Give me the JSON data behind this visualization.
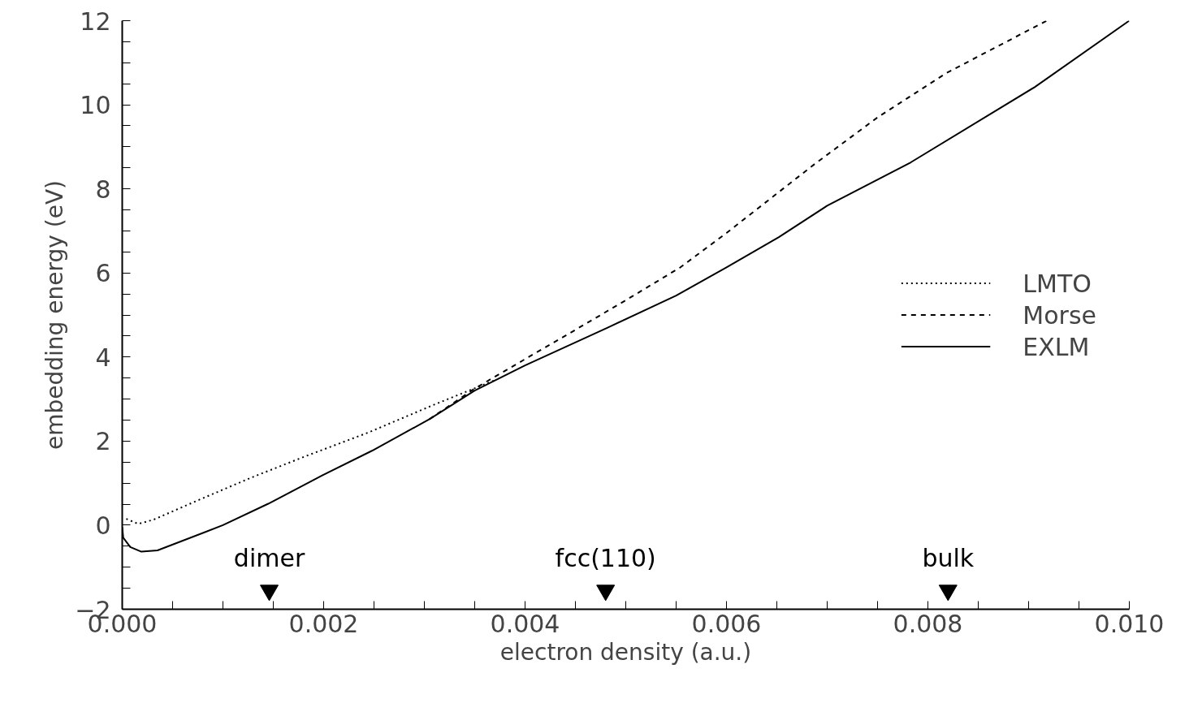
{
  "chart_data": {
    "type": "line",
    "xlabel": "electron density (a.u.)",
    "ylabel": "embedding energy (eV)",
    "xlim": [
      0,
      0.01
    ],
    "ylim": [
      -2,
      12
    ],
    "xticks": [
      {
        "value": 0,
        "label": "0.000"
      },
      {
        "value": 0.0005,
        "label": null
      },
      {
        "value": 0.001,
        "label": null
      },
      {
        "value": 0.0015,
        "label": null
      },
      {
        "value": 0.002,
        "label": "0.002"
      },
      {
        "value": 0.0025,
        "label": null
      },
      {
        "value": 0.003,
        "label": null
      },
      {
        "value": 0.0035,
        "label": null
      },
      {
        "value": 0.004,
        "label": "0.004"
      },
      {
        "value": 0.0045,
        "label": null
      },
      {
        "value": 0.005,
        "label": null
      },
      {
        "value": 0.0055,
        "label": null
      },
      {
        "value": 0.006,
        "label": "0.006"
      },
      {
        "value": 0.0065,
        "label": null
      },
      {
        "value": 0.007,
        "label": null
      },
      {
        "value": 0.0075,
        "label": null
      },
      {
        "value": 0.008,
        "label": "0.008"
      },
      {
        "value": 0.0085,
        "label": null
      },
      {
        "value": 0.009,
        "label": null
      },
      {
        "value": 0.0095,
        "label": null
      },
      {
        "value": 0.01,
        "label": "0.010"
      }
    ],
    "yticks": [
      {
        "value": -2,
        "label": "−2"
      },
      {
        "value": -1.5,
        "label": null
      },
      {
        "value": -1,
        "label": null
      },
      {
        "value": -0.5,
        "label": null
      },
      0,
      {
        "value": 0.5,
        "label": null
      },
      {
        "value": 1,
        "label": null
      },
      {
        "value": 1.5,
        "label": null
      },
      2,
      {
        "value": 2.5,
        "label": null
      },
      {
        "value": 3,
        "label": null
      },
      {
        "value": 3.5,
        "label": null
      },
      4,
      {
        "value": 4.5,
        "label": null
      },
      {
        "value": 5,
        "label": null
      },
      {
        "value": 5.5,
        "label": null
      },
      6,
      {
        "value": 6.5,
        "label": null
      },
      {
        "value": 7,
        "label": null
      },
      {
        "value": 7.5,
        "label": null
      },
      8,
      {
        "value": 8.5,
        "label": null
      },
      {
        "value": 9,
        "label": null
      },
      {
        "value": 9.5,
        "label": null
      },
      10,
      {
        "value": 10.5,
        "label": null
      },
      {
        "value": 11,
        "label": null
      },
      {
        "value": 11.5,
        "label": null
      },
      12
    ],
    "grid": false,
    "legend": "right",
    "marker": "none",
    "series": [
      {
        "name": "LMTO",
        "color": "#000000",
        "line_style": "dotted",
        "x": [
          4e-05,
          0.00016,
          0.00031,
          0.00076,
          0.00128,
          0.00182,
          0.00245,
          0.00311,
          0.00343,
          0.0037
        ],
        "values": [
          0.15,
          0.03,
          0.13,
          0.6,
          1.13,
          1.64,
          2.21,
          2.88,
          3.19,
          3.45
        ]
      },
      {
        "name": "Morse",
        "color": "#000000",
        "line_style": "dashed",
        "x": [
          0.00305,
          0.0035,
          0.004,
          0.00436,
          0.005,
          0.00554,
          0.006,
          0.00687,
          0.0075,
          0.00818,
          0.00918
        ],
        "values": [
          2.52,
          3.25,
          3.95,
          4.45,
          5.35,
          6.13,
          6.95,
          8.58,
          9.7,
          10.75,
          12.0
        ]
      },
      {
        "name": "EXLM",
        "color": "#000000",
        "line_style": "solid",
        "x": [
          0,
          1e-05,
          8e-05,
          0.00019,
          0.00035,
          0.001,
          0.00145,
          0.00199,
          0.00248,
          0.00305,
          0.0035,
          0.004,
          0.00482,
          0.0055,
          0.006,
          0.00652,
          0.007,
          0.00783,
          0.00906,
          0.01
        ],
        "values": [
          -0.04,
          -0.3,
          -0.52,
          -0.63,
          -0.6,
          0,
          0.51,
          1.19,
          1.77,
          2.52,
          3.2,
          3.8,
          4.7,
          5.46,
          6.13,
          6.85,
          7.6,
          8.63,
          10.42,
          12.0
        ]
      },
      {
        "type": "scatter",
        "marker": "triangle",
        "color": "#000000",
        "x": [
          0.00146,
          0.0048,
          0.0082
        ],
        "values": [
          -1.55,
          -1.55,
          -1.55
        ],
        "value_labels": [
          "dimer",
          "fcc(110)",
          "bulk"
        ]
      }
    ]
  }
}
